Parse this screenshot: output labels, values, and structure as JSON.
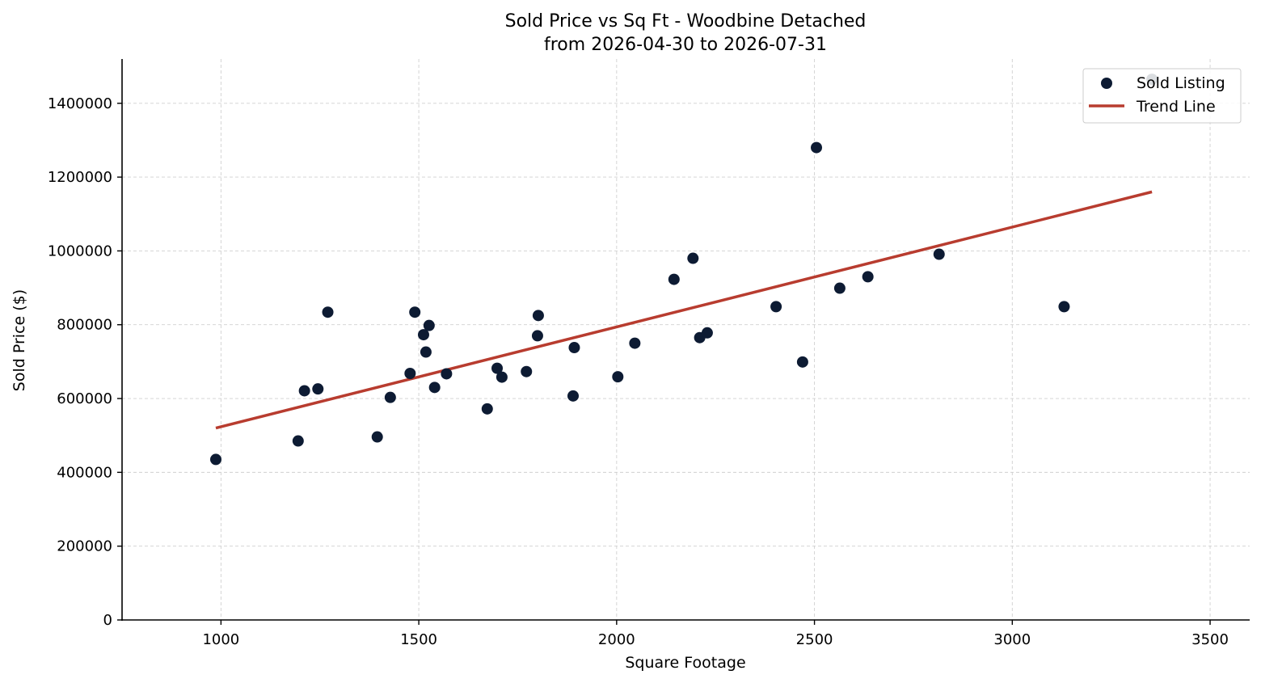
{
  "chart_data": {
    "type": "scatter",
    "title": "Sold Price vs Sq Ft - Woodbine Detached",
    "subtitle": "from 2026-04-30 to 2026-07-31",
    "xlabel": "Square Footage",
    "ylabel": "Sold Price ($)",
    "xlim": [
      750,
      3600
    ],
    "ylim": [
      0,
      1520000
    ],
    "xticks": [
      1000,
      1500,
      2000,
      2500,
      3000,
      3500
    ],
    "yticks": [
      0,
      200000,
      400000,
      600000,
      800000,
      1000000,
      1200000,
      1400000
    ],
    "grid": true,
    "legend_position": "top-right",
    "colors": {
      "points": "#0d1b33",
      "trend": "#b83c2f"
    },
    "series": [
      {
        "name": "Sold Listing",
        "kind": "scatter",
        "x": [
          987,
          1195,
          1211,
          1245,
          1270,
          1395,
          1428,
          1478,
          1490,
          1512,
          1518,
          1526,
          1540,
          1570,
          1673,
          1698,
          1710,
          1772,
          1800,
          1802,
          1890,
          1893,
          2003,
          2046,
          2145,
          2193,
          2210,
          2229,
          2403,
          2470,
          2505,
          2564,
          2635,
          2815,
          3131,
          3353
        ],
        "y": [
          435000,
          485000,
          621000,
          626000,
          834000,
          496000,
          603000,
          668000,
          834000,
          773000,
          726000,
          798000,
          630000,
          667000,
          572000,
          682000,
          658000,
          673000,
          770000,
          825000,
          607000,
          738000,
          659000,
          750000,
          923000,
          980000,
          765000,
          778000,
          849000,
          699000,
          1280000,
          899000,
          930000,
          991000,
          849000,
          1465000
        ]
      },
      {
        "name": "Trend Line",
        "kind": "line",
        "x": [
          987,
          3353
        ],
        "y": [
          520000,
          1160000
        ]
      }
    ]
  }
}
